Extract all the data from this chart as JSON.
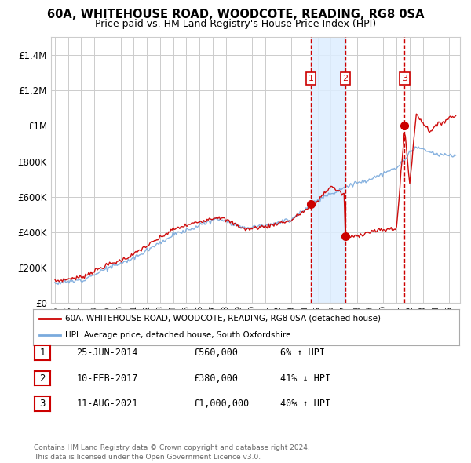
{
  "title": "60A, WHITEHOUSE ROAD, WOODCOTE, READING, RG8 0SA",
  "subtitle": "Price paid vs. HM Land Registry's House Price Index (HPI)",
  "ylim": [
    0,
    1500000
  ],
  "yticks": [
    0,
    200000,
    400000,
    600000,
    800000,
    1000000,
    1200000,
    1400000
  ],
  "ytick_labels": [
    "£0",
    "£200K",
    "£400K",
    "£600K",
    "£800K",
    "£1M",
    "£1.2M",
    "£1.4M"
  ],
  "transaction_dates_num": [
    2014.48,
    2017.11,
    2021.61
  ],
  "transaction_prices": [
    560000,
    380000,
    1000000
  ],
  "transaction_labels": [
    "1",
    "2",
    "3"
  ],
  "legend_red": "60A, WHITEHOUSE ROAD, WOODCOTE, READING, RG8 0SA (detached house)",
  "legend_blue": "HPI: Average price, detached house, South Oxfordshire",
  "table_rows": [
    [
      "1",
      "25-JUN-2014",
      "£560,000",
      "6% ↑ HPI"
    ],
    [
      "2",
      "10-FEB-2017",
      "£380,000",
      "41% ↓ HPI"
    ],
    [
      "3",
      "11-AUG-2021",
      "£1,000,000",
      "40% ↑ HPI"
    ]
  ],
  "footer": "Contains HM Land Registry data © Crown copyright and database right 2024.\nThis data is licensed under the Open Government Licence v3.0.",
  "red_color": "#cc0000",
  "blue_color": "#7aaadd",
  "shade_color": "#ddeeff",
  "grid_color": "#cccccc",
  "background_color": "#ffffff"
}
